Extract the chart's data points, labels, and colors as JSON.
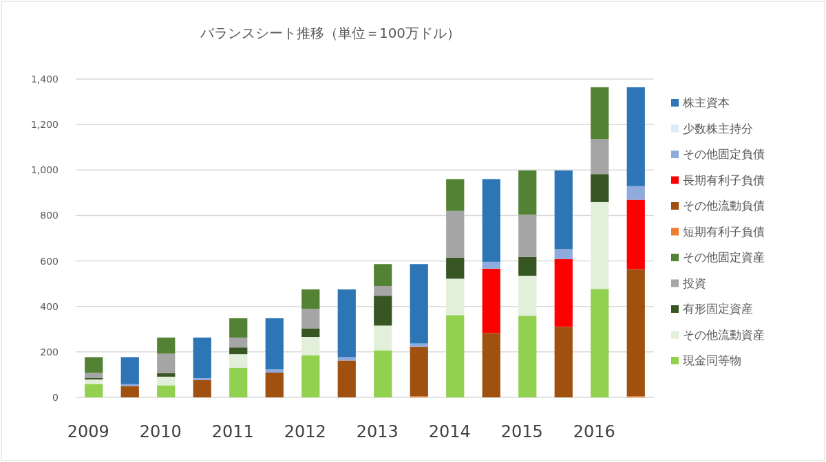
{
  "chart_data": {
    "type": "bar",
    "title": "バランスシート推移（単位＝100万ドル）",
    "stacked": true,
    "grid": "y",
    "legend": "right",
    "categories": [
      "2009",
      null,
      "2010",
      null,
      "2011",
      null,
      "2012",
      null,
      "2013",
      null,
      "2014",
      null,
      "2015",
      null,
      "2016",
      null
    ],
    "ylim": [
      0,
      1400
    ],
    "yticks": [
      0,
      200,
      400,
      600,
      800,
      {
        "value": 1000,
        "label": "1,000"
      },
      {
        "value": 1200,
        "label": "1,200"
      },
      {
        "value": 1400,
        "label": "1,400"
      }
    ],
    "series": [
      {
        "name": "現金同等物",
        "color": "#92d050",
        "values": [
          59,
          null,
          53,
          null,
          131,
          null,
          185,
          null,
          207,
          null,
          362,
          null,
          359,
          null,
          477,
          null
        ]
      },
      {
        "name": "その他流動資産",
        "color": "#e2efda",
        "values": [
          20,
          null,
          38,
          null,
          59,
          null,
          81,
          null,
          109,
          null,
          160,
          null,
          176,
          null,
          382,
          null
        ]
      },
      {
        "name": "有形固定資産",
        "color": "#375623",
        "values": [
          7,
          null,
          15,
          null,
          30,
          null,
          37,
          null,
          131,
          null,
          92,
          null,
          83,
          null,
          123,
          null
        ]
      },
      {
        "name": "投資",
        "color": "#a5a5a5",
        "values": [
          22,
          null,
          86,
          null,
          43,
          null,
          86,
          null,
          43,
          null,
          206,
          null,
          185,
          null,
          154,
          null
        ]
      },
      {
        "name": "その他固定資産",
        "color": "#548235",
        "values": [
          69,
          null,
          71,
          null,
          85,
          null,
          86,
          null,
          96,
          null,
          140,
          null,
          195,
          null,
          228,
          null
        ]
      },
      {
        "name": "短期有利子負債",
        "color": "#ed7d31",
        "values": [
          null,
          null,
          null,
          null,
          null,
          null,
          null,
          null,
          null,
          5,
          null,
          null,
          null,
          null,
          null,
          5
        ]
      },
      {
        "name": "その他流動負債",
        "color": "#a0500f",
        "values": [
          null,
          50,
          null,
          76,
          null,
          109,
          null,
          162,
          null,
          217,
          null,
          283,
          null,
          310,
          null,
          559
        ]
      },
      {
        "name": "長期有利子負債",
        "color": "#ff0000",
        "values": [
          null,
          null,
          null,
          null,
          null,
          null,
          null,
          null,
          null,
          null,
          null,
          283,
          null,
          298,
          null,
          305
        ]
      },
      {
        "name": "その他固定負債",
        "color": "#8faadc",
        "values": [
          null,
          8,
          null,
          8,
          null,
          14,
          null,
          15,
          null,
          15,
          null,
          30,
          null,
          44,
          null,
          60
        ]
      },
      {
        "name": "少数株主持分",
        "color": "#deebf7",
        "values": [
          null,
          null,
          null,
          null,
          null,
          null,
          null,
          null,
          null,
          null,
          null,
          null,
          null,
          null,
          null,
          null
        ]
      },
      {
        "name": "株主資本",
        "color": "#2e75b6",
        "values": [
          null,
          119,
          null,
          179,
          null,
          225,
          null,
          298,
          null,
          349,
          null,
          364,
          null,
          346,
          null,
          435
        ]
      }
    ]
  }
}
